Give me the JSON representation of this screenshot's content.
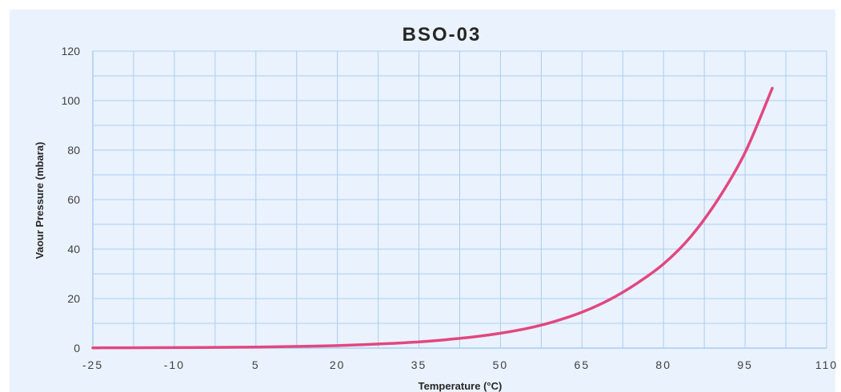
{
  "chart_data": {
    "type": "line",
    "title": "BSO-03",
    "xlabel": "Temperature (°C)",
    "ylabel": "Vaour Pressure (mbara)",
    "xlim": [
      -25,
      110
    ],
    "ylim": [
      0,
      120
    ],
    "x_ticks": [
      "-25",
      "-10",
      "5",
      "20",
      "35",
      "50",
      "65",
      "80",
      "95",
      "110"
    ],
    "y_ticks": [
      "0",
      "20",
      "40",
      "60",
      "80",
      "100",
      "120"
    ],
    "grid": true,
    "legend": "none",
    "colors": {
      "background": "#eaf2fd",
      "grid": "#a9cdf2",
      "line": "#e2477f"
    },
    "series": [
      {
        "x": [
          -25,
          -15,
          -5,
          5,
          15,
          20,
          25,
          30,
          35,
          40,
          45,
          50,
          55,
          60,
          65,
          70,
          75,
          80,
          85,
          90,
          95,
          100
        ],
        "values": [
          0.1,
          0.15,
          0.25,
          0.4,
          0.75,
          1.0,
          1.4,
          1.9,
          2.5,
          3.4,
          4.5,
          6.0,
          8.0,
          10.8,
          14.5,
          19.5,
          26.0,
          34.0,
          45.0,
          60.0,
          79.0,
          105.0
        ]
      }
    ]
  }
}
